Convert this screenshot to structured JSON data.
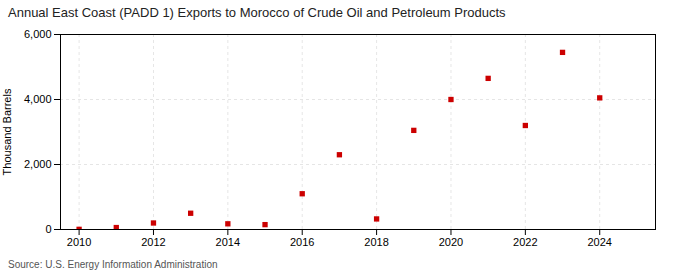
{
  "chart_data": {
    "type": "scatter",
    "title": "Annual East Coast (PADD 1) Exports to Morocco of Crude Oil and Petroleum Products",
    "y_label": "Thousand Barrels",
    "source": "Source: U.S. Energy Information Administration",
    "x": [
      2010,
      2011,
      2012,
      2013,
      2014,
      2015,
      2016,
      2017,
      2018,
      2019,
      2020,
      2021,
      2022,
      2023,
      2024
    ],
    "values": [
      5,
      60,
      200,
      500,
      175,
      150,
      1100,
      2300,
      325,
      3050,
      4000,
      4650,
      3200,
      5450,
      4050
    ],
    "color": "#cc0000",
    "marker": "square",
    "xlim": [
      2009.5,
      2025.5
    ],
    "xticks": [
      2010,
      2012,
      2014,
      2016,
      2018,
      2020,
      2022,
      2024
    ],
    "ylim": [
      0,
      6000
    ],
    "yticks": [
      0,
      {
        "value": 2000,
        "label": "2,000"
      },
      {
        "value": 4000,
        "label": "4,000"
      },
      {
        "value": 6000,
        "label": "6,000"
      }
    ],
    "grid": true
  }
}
